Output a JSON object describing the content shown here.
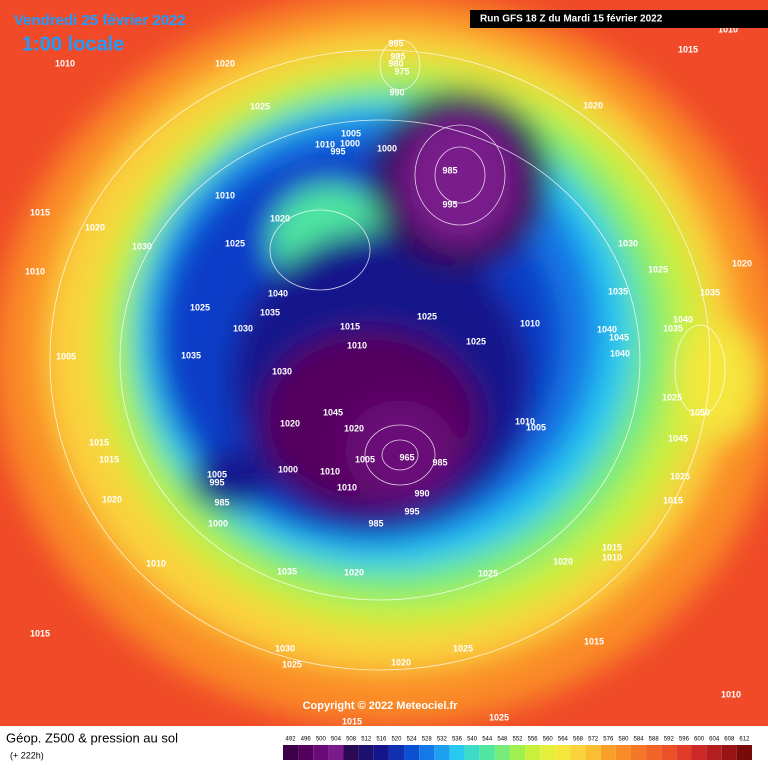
{
  "header": {
    "date": "Vendredi 25 février 2022",
    "time": "1:00 locale",
    "run": "Run GFS 18 Z du Mardi 15 février 2022"
  },
  "footer": {
    "title": "Géop. Z500 & pression au sol",
    "lead": "(+ 222h)",
    "copyright": "Copyright © 2022 Meteociel.fr"
  },
  "colorbar": {
    "ticks": [
      492,
      496,
      500,
      504,
      508,
      512,
      516,
      520,
      524,
      528,
      532,
      536,
      540,
      544,
      548,
      552,
      556,
      560,
      564,
      568,
      572,
      576,
      580,
      584,
      588,
      592,
      596,
      600,
      604,
      608,
      612
    ],
    "colors": [
      "#3c0048",
      "#55005f",
      "#6a0a78",
      "#7a1a8c",
      "#2a0a55",
      "#1c1070",
      "#14148c",
      "#1030b0",
      "#0a50d0",
      "#1478e6",
      "#1ea0f0",
      "#28c8f0",
      "#3cdcc8",
      "#50e6a0",
      "#78ec78",
      "#a0f050",
      "#c8f03c",
      "#e6f03c",
      "#f5e63c",
      "#fad23c",
      "#fabe32",
      "#faa028",
      "#fa8c28",
      "#f57828",
      "#f06428",
      "#eb5028",
      "#e03c28",
      "#cc2828",
      "#b41e1e",
      "#961414",
      "#780a0a"
    ]
  },
  "isobar_labels": [
    995,
    985,
    980,
    975,
    990,
    1015,
    1010,
    1020,
    1025,
    1020,
    1005,
    1010,
    1000,
    995,
    1000,
    985,
    995,
    1010,
    1015,
    1020,
    1020,
    1025,
    1030,
    1030,
    1025,
    1035,
    1040,
    1035,
    1030,
    1025,
    1015,
    1025,
    1010,
    1035,
    1020,
    1010,
    1005,
    1035,
    1010,
    1025,
    1040,
    1030,
    1045,
    1020,
    1020,
    1010,
    1005,
    1005,
    965,
    985,
    1010,
    1000,
    1010,
    990,
    995,
    985,
    1005,
    995,
    985,
    1000,
    1015,
    1015,
    1020,
    1050,
    1045,
    1025,
    1015,
    1035,
    1020,
    1025,
    1010,
    1015,
    1030,
    1025,
    1020,
    1025,
    1015,
    1020,
    1015,
    1010,
    1015,
    1025,
    1010,
    1010,
    1040,
    1045,
    1035,
    1040,
    1025
  ]
}
